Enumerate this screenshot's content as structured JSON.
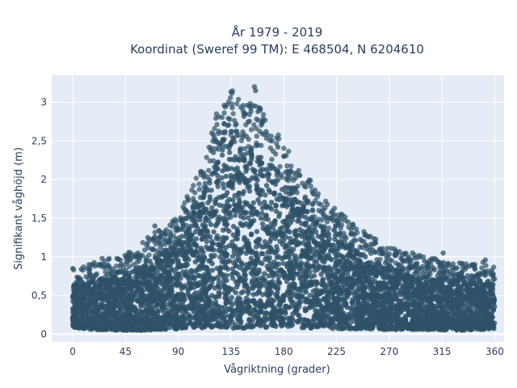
{
  "chart_data": {
    "type": "scatter",
    "title": "År 1979 - 2019",
    "subtitle": "Koordinat (Sweref 99 TM): E 468504, N 6204610",
    "xlabel": "Vågriktning (grader)",
    "ylabel": "Signifikant våghöjd (m)",
    "xlim": [
      -18,
      368
    ],
    "ylim": [
      -0.1,
      3.35
    ],
    "x_ticks": [
      0,
      45,
      90,
      135,
      180,
      225,
      270,
      315,
      360
    ],
    "y_ticks": [
      0,
      0.5,
      1,
      1.5,
      2,
      2.5,
      3
    ],
    "y_tick_labels": [
      "0",
      "0,5",
      "1",
      "1,5",
      "2",
      "2,5",
      "3"
    ],
    "grid": true,
    "background": "#e5ecf6",
    "marker_color": "#2e5168",
    "envelope": {
      "description": "Dense point cloud: lower band and upper envelope of significant wave height vs direction",
      "x": [
        0,
        20,
        45,
        60,
        75,
        90,
        100,
        110,
        120,
        130,
        135,
        145,
        155,
        165,
        180,
        200,
        225,
        250,
        270,
        300,
        330,
        360
      ],
      "lower": [
        0.08,
        0.06,
        0.05,
        0.05,
        0.06,
        0.07,
        0.08,
        0.08,
        0.09,
        0.09,
        0.08,
        0.08,
        0.09,
        0.09,
        0.09,
        0.08,
        0.07,
        0.07,
        0.06,
        0.06,
        0.05,
        0.07
      ],
      "upper": [
        0.62,
        0.7,
        0.78,
        0.92,
        1.05,
        1.2,
        1.45,
        1.8,
        2.2,
        2.45,
        2.55,
        2.35,
        2.45,
        2.25,
        1.95,
        1.6,
        1.25,
        1.0,
        0.85,
        0.75,
        0.68,
        0.65
      ]
    },
    "outliers": [
      {
        "x": 0,
        "y": 0.85
      },
      {
        "x": 25,
        "y": 0.98
      },
      {
        "x": 55,
        "y": 1.02
      },
      {
        "x": 64,
        "y": 1.25
      },
      {
        "x": 70,
        "y": 1.4
      },
      {
        "x": 78,
        "y": 1.32
      },
      {
        "x": 83,
        "y": 1.41
      },
      {
        "x": 113,
        "y": 1.95
      },
      {
        "x": 120,
        "y": 2.35
      },
      {
        "x": 125,
        "y": 2.45
      },
      {
        "x": 130,
        "y": 2.62
      },
      {
        "x": 132,
        "y": 2.7
      },
      {
        "x": 134,
        "y": 2.78
      },
      {
        "x": 136,
        "y": 2.93
      },
      {
        "x": 140,
        "y": 2.62
      },
      {
        "x": 145,
        "y": 2.55
      },
      {
        "x": 149,
        "y": 2.96
      },
      {
        "x": 151,
        "y": 2.95
      },
      {
        "x": 155,
        "y": 3.2
      },
      {
        "x": 156,
        "y": 3.15
      },
      {
        "x": 158,
        "y": 2.88
      },
      {
        "x": 160,
        "y": 2.92
      },
      {
        "x": 162,
        "y": 2.75
      },
      {
        "x": 165,
        "y": 2.62
      },
      {
        "x": 170,
        "y": 2.5
      },
      {
        "x": 175,
        "y": 2.42
      },
      {
        "x": 180,
        "y": 2.3
      },
      {
        "x": 190,
        "y": 2.02
      },
      {
        "x": 200,
        "y": 1.72
      },
      {
        "x": 210,
        "y": 1.6
      },
      {
        "x": 220,
        "y": 1.5
      },
      {
        "x": 228,
        "y": 1.3
      },
      {
        "x": 235,
        "y": 1.45
      },
      {
        "x": 250,
        "y": 1.15
      },
      {
        "x": 262,
        "y": 1.1
      },
      {
        "x": 280,
        "y": 0.98
      },
      {
        "x": 290,
        "y": 1.05
      },
      {
        "x": 300,
        "y": 0.95
      },
      {
        "x": 316,
        "y": 1.05
      },
      {
        "x": 330,
        "y": 0.92
      },
      {
        "x": 338,
        "y": 0.88
      },
      {
        "x": 350,
        "y": 0.93
      },
      {
        "x": 352,
        "y": 0.96
      }
    ]
  }
}
